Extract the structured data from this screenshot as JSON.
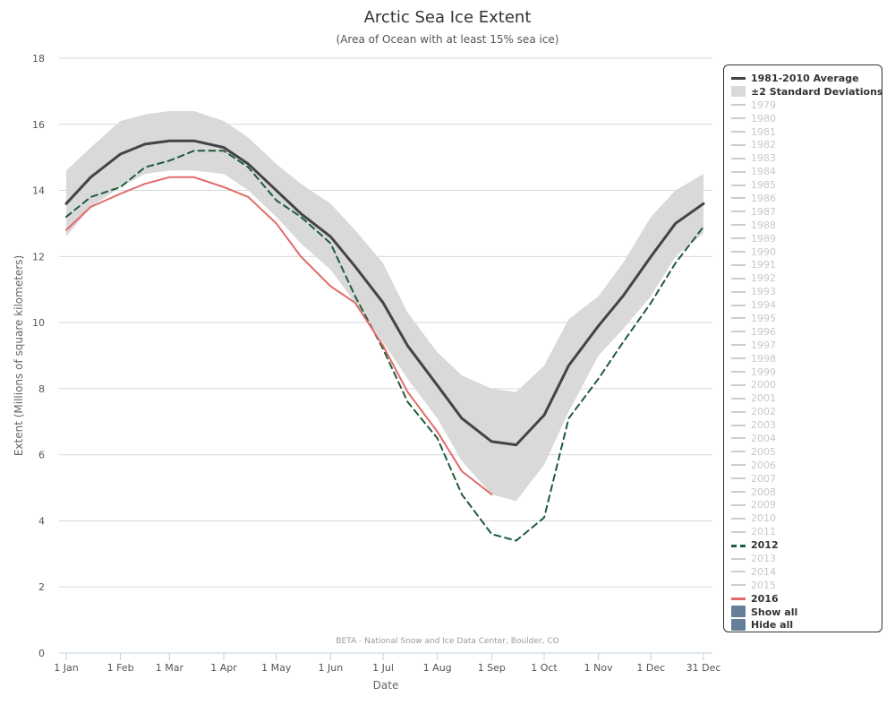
{
  "chart_data": {
    "type": "line",
    "title": "Arctic Sea Ice Extent",
    "subtitle": "(Area of Ocean with at least 15% sea ice)",
    "xlabel": "Date",
    "ylabel": "Extent (Millions of square kilometers)",
    "ylim": [
      0,
      18
    ],
    "yticks": [
      0,
      2,
      4,
      6,
      8,
      10,
      12,
      14,
      16,
      18
    ],
    "x_tick_labels": [
      "1 Jan",
      "1 Feb",
      "1 Mar",
      "1 Apr",
      "1 May",
      "1 Jun",
      "1 Jul",
      "1 Aug",
      "1 Sep",
      "1 Oct",
      "1 Nov",
      "1 Dec",
      "31 Dec"
    ],
    "grid": true,
    "legend_position": "right",
    "credit": "BETA - National Snow and Ice Data Center, Boulder, CO",
    "colors": {
      "average": "#444444",
      "band": "#d9d9d9",
      "y2012": "#1e5c3a",
      "y2016": "#e26a6a",
      "inactive": "#cccccc",
      "button": "#667f99"
    },
    "series": [
      {
        "name": "1981-2010 Average",
        "style": "solid",
        "x": [
          "1 Jan",
          "15 Jan",
          "1 Feb",
          "15 Feb",
          "1 Mar",
          "15 Mar",
          "1 Apr",
          "15 Apr",
          "1 May",
          "15 May",
          "1 Jun",
          "15 Jun",
          "1 Jul",
          "15 Jul",
          "1 Aug",
          "15 Aug",
          "1 Sep",
          "15 Sep",
          "1 Oct",
          "15 Oct",
          "1 Nov",
          "15 Nov",
          "1 Dec",
          "15 Dec",
          "31 Dec"
        ],
        "values": [
          13.6,
          14.4,
          15.1,
          15.4,
          15.5,
          15.5,
          15.3,
          14.8,
          14.0,
          13.3,
          12.6,
          11.7,
          10.6,
          9.3,
          8.1,
          7.1,
          6.4,
          6.3,
          7.2,
          8.7,
          9.9,
          10.8,
          12.0,
          13.0,
          13.6
        ]
      },
      {
        "name": "±2 Standard Deviations",
        "style": "band",
        "x": [
          "1 Jan",
          "15 Jan",
          "1 Feb",
          "15 Feb",
          "1 Mar",
          "15 Mar",
          "1 Apr",
          "15 Apr",
          "1 May",
          "15 May",
          "1 Jun",
          "15 Jun",
          "1 Jul",
          "15 Jul",
          "1 Aug",
          "15 Aug",
          "1 Sep",
          "15 Sep",
          "1 Oct",
          "15 Oct",
          "1 Nov",
          "15 Nov",
          "1 Dec",
          "15 Dec",
          "31 Dec"
        ],
        "upper": [
          14.6,
          15.3,
          16.1,
          16.3,
          16.4,
          16.4,
          16.1,
          15.6,
          14.8,
          14.2,
          13.6,
          12.8,
          11.8,
          10.3,
          9.1,
          8.4,
          8.0,
          7.9,
          8.7,
          10.1,
          10.8,
          11.8,
          13.2,
          14.0,
          14.5
        ],
        "lower": [
          12.6,
          13.5,
          14.1,
          14.5,
          14.6,
          14.6,
          14.5,
          14.0,
          13.2,
          12.4,
          11.6,
          10.6,
          9.4,
          8.3,
          7.1,
          5.8,
          4.8,
          4.6,
          5.7,
          7.3,
          9.0,
          9.8,
          10.8,
          12.0,
          12.7
        ]
      },
      {
        "name": "2012",
        "style": "dashed",
        "x": [
          "1 Jan",
          "15 Jan",
          "1 Feb",
          "15 Feb",
          "1 Mar",
          "15 Mar",
          "1 Apr",
          "15 Apr",
          "1 May",
          "15 May",
          "1 Jun",
          "15 Jun",
          "1 Jul",
          "15 Jul",
          "1 Aug",
          "15 Aug",
          "1 Sep",
          "15 Sep",
          "1 Oct",
          "15 Oct",
          "1 Nov",
          "15 Nov",
          "1 Dec",
          "15 Dec",
          "31 Dec"
        ],
        "values": [
          13.2,
          13.8,
          14.1,
          14.7,
          14.9,
          15.2,
          15.2,
          14.7,
          13.7,
          13.2,
          12.4,
          10.8,
          9.2,
          7.6,
          6.5,
          4.8,
          3.6,
          3.4,
          4.1,
          7.1,
          8.3,
          9.4,
          10.6,
          11.8,
          12.9
        ]
      },
      {
        "name": "2016",
        "style": "solid",
        "x": [
          "1 Jan",
          "15 Jan",
          "1 Feb",
          "15 Feb",
          "1 Mar",
          "15 Mar",
          "1 Apr",
          "15 Apr",
          "1 May",
          "15 May",
          "1 Jun",
          "15 Jun",
          "1 Jul",
          "15 Jul",
          "1 Aug",
          "15 Aug",
          "1 Sep"
        ],
        "values": [
          12.8,
          13.5,
          13.9,
          14.2,
          14.4,
          14.4,
          14.1,
          13.8,
          13.0,
          12.0,
          11.1,
          10.6,
          9.3,
          7.9,
          6.7,
          5.5,
          4.8
        ]
      }
    ]
  },
  "legend": {
    "items": [
      {
        "label": "1981-2010 Average",
        "kind": "line",
        "color": "#444444",
        "state": "bold"
      },
      {
        "label": "±2 Standard Deviations",
        "kind": "band",
        "color": "#d9d9d9",
        "state": "bold"
      },
      {
        "label": "1979",
        "kind": "line",
        "color": "#cccccc",
        "state": "muted"
      },
      {
        "label": "1980",
        "kind": "line",
        "color": "#cccccc",
        "state": "muted"
      },
      {
        "label": "1981",
        "kind": "line",
        "color": "#cccccc",
        "state": "muted"
      },
      {
        "label": "1982",
        "kind": "line",
        "color": "#cccccc",
        "state": "muted"
      },
      {
        "label": "1983",
        "kind": "line",
        "color": "#cccccc",
        "state": "muted"
      },
      {
        "label": "1984",
        "kind": "line",
        "color": "#cccccc",
        "state": "muted"
      },
      {
        "label": "1985",
        "kind": "line",
        "color": "#cccccc",
        "state": "muted"
      },
      {
        "label": "1986",
        "kind": "line",
        "color": "#cccccc",
        "state": "muted"
      },
      {
        "label": "1987",
        "kind": "line",
        "color": "#cccccc",
        "state": "muted"
      },
      {
        "label": "1988",
        "kind": "line",
        "color": "#cccccc",
        "state": "muted"
      },
      {
        "label": "1989",
        "kind": "line",
        "color": "#cccccc",
        "state": "muted"
      },
      {
        "label": "1990",
        "kind": "line",
        "color": "#cccccc",
        "state": "muted"
      },
      {
        "label": "1991",
        "kind": "line",
        "color": "#cccccc",
        "state": "muted"
      },
      {
        "label": "1992",
        "kind": "line",
        "color": "#cccccc",
        "state": "muted"
      },
      {
        "label": "1993",
        "kind": "line",
        "color": "#cccccc",
        "state": "muted"
      },
      {
        "label": "1994",
        "kind": "line",
        "color": "#cccccc",
        "state": "muted"
      },
      {
        "label": "1995",
        "kind": "line",
        "color": "#cccccc",
        "state": "muted"
      },
      {
        "label": "1996",
        "kind": "line",
        "color": "#cccccc",
        "state": "muted"
      },
      {
        "label": "1997",
        "kind": "line",
        "color": "#cccccc",
        "state": "muted"
      },
      {
        "label": "1998",
        "kind": "line",
        "color": "#cccccc",
        "state": "muted"
      },
      {
        "label": "1999",
        "kind": "line",
        "color": "#cccccc",
        "state": "muted"
      },
      {
        "label": "2000",
        "kind": "line",
        "color": "#cccccc",
        "state": "muted"
      },
      {
        "label": "2001",
        "kind": "line",
        "color": "#cccccc",
        "state": "muted"
      },
      {
        "label": "2002",
        "kind": "line",
        "color": "#cccccc",
        "state": "muted"
      },
      {
        "label": "2003",
        "kind": "line",
        "color": "#cccccc",
        "state": "muted"
      },
      {
        "label": "2004",
        "kind": "line",
        "color": "#cccccc",
        "state": "muted"
      },
      {
        "label": "2005",
        "kind": "line",
        "color": "#cccccc",
        "state": "muted"
      },
      {
        "label": "2006",
        "kind": "line",
        "color": "#cccccc",
        "state": "muted"
      },
      {
        "label": "2007",
        "kind": "line",
        "color": "#cccccc",
        "state": "muted"
      },
      {
        "label": "2008",
        "kind": "line",
        "color": "#cccccc",
        "state": "muted"
      },
      {
        "label": "2009",
        "kind": "line",
        "color": "#cccccc",
        "state": "muted"
      },
      {
        "label": "2010",
        "kind": "line",
        "color": "#cccccc",
        "state": "muted"
      },
      {
        "label": "2011",
        "kind": "line",
        "color": "#cccccc",
        "state": "muted"
      },
      {
        "label": "2012",
        "kind": "dashed",
        "color": "#1e5c3a",
        "state": "bold"
      },
      {
        "label": "2013",
        "kind": "line",
        "color": "#cccccc",
        "state": "muted"
      },
      {
        "label": "2014",
        "kind": "line",
        "color": "#cccccc",
        "state": "muted"
      },
      {
        "label": "2015",
        "kind": "line",
        "color": "#cccccc",
        "state": "muted"
      },
      {
        "label": "2016",
        "kind": "line",
        "color": "#e26a6a",
        "state": "bold"
      },
      {
        "label": "Show all",
        "kind": "button",
        "color": "#667f99",
        "state": "bold"
      },
      {
        "label": "Hide all",
        "kind": "button",
        "color": "#667f99",
        "state": "bold"
      }
    ]
  }
}
